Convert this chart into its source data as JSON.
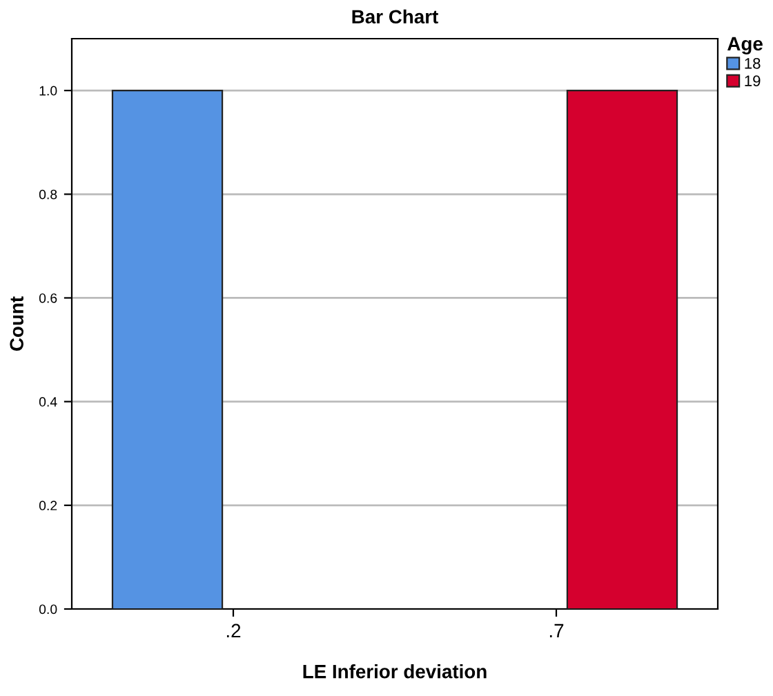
{
  "chart_data": {
    "type": "bar",
    "title": "Bar Chart",
    "xlabel": "LE Inferior deviation",
    "ylabel": "Count",
    "legend_title": "Age",
    "categories": [
      ".2",
      ".7"
    ],
    "series": [
      {
        "name": "18",
        "color": "#5593e3",
        "values": [
          1.0,
          null
        ]
      },
      {
        "name": "19",
        "color": "#d5002e",
        "values": [
          null,
          1.0
        ]
      }
    ],
    "ylim": [
      0,
      1.1
    ],
    "yticks": [
      {
        "value": 0,
        "label": "0.0"
      },
      {
        "value": 0.2,
        "label": "0.2"
      },
      {
        "value": 0.4,
        "label": "0.4"
      },
      {
        "value": 0.6,
        "label": "0.6"
      },
      {
        "value": 0.8,
        "label": "0.8"
      },
      {
        "value": 1.0,
        "label": "1.0"
      }
    ],
    "grid": "y",
    "legend": "top right"
  }
}
